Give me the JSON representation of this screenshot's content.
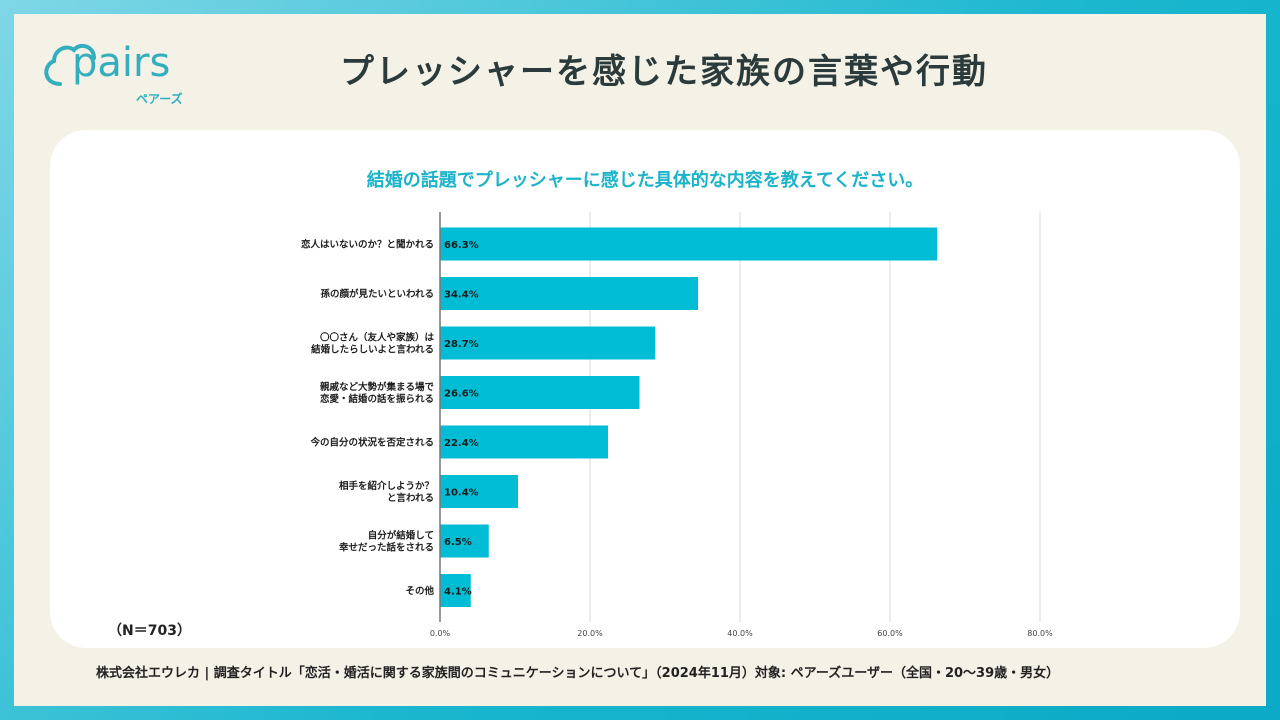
{
  "colors": {
    "accent": "#1ab3c9",
    "bar": "#00bcd4",
    "card": "#ffffff",
    "slide": "#f4f1e6"
  },
  "logo": {
    "word": "pairs",
    "sub": "ペアーズ",
    "icon": "cloud-icon"
  },
  "page_title": "プレッシャーを感じた家族の言葉や行動",
  "sample": "（N＝703）",
  "footer": "株式会社エウレカ | 調査タイトル「恋活・婚活に関する家族間のコミュニケーションについて」（2024年11月）対象: ペアーズユーザー（全国・20〜39歳・男女）",
  "chart_data": {
    "type": "bar",
    "orientation": "horizontal",
    "title": "結婚の話題でプレッシャーに感じた具体的な内容を教えてください。",
    "categories": [
      "恋人はいないのか？と聞かれる",
      "孫の顔が見たいといわれる",
      "〇〇さん（友人や家族）は\n結婚したらしいよと言われる",
      "親戚など大勢が集まる場で\n恋愛・結婚の話を振られる",
      "今の自分の状況を否定される",
      "相手を紹介しようか？\nと言われる",
      "自分が結婚して\n幸せだった話をされる",
      "その他"
    ],
    "values": [
      66.3,
      34.4,
      28.7,
      26.6,
      22.4,
      10.4,
      6.5,
      4.1
    ],
    "value_labels": [
      "66.3%",
      "34.4%",
      "28.7%",
      "26.6%",
      "22.4%",
      "10.4%",
      "6.5%",
      "4.1%"
    ],
    "xlim": [
      0,
      80
    ],
    "ticks": [
      0,
      20,
      40,
      60,
      80
    ],
    "tick_labels": [
      "0.0%",
      "20.0%",
      "40.0%",
      "60.0%",
      "80.0%"
    ],
    "grid": true
  }
}
